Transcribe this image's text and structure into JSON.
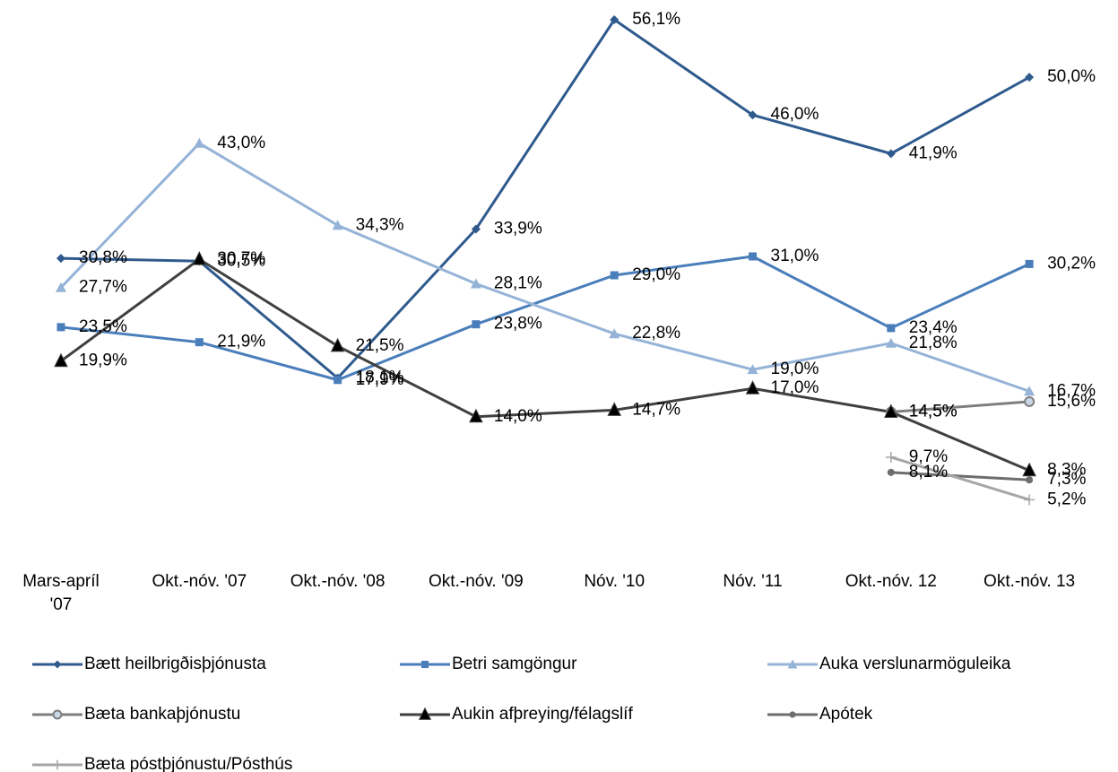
{
  "chart_data": {
    "type": "line",
    "categories": [
      "Mars-apríl '07",
      "Okt.-nóv. '07",
      "Okt.-nóv. '08",
      "Okt.-nóv. '09",
      "Nóv. '10",
      "Nóv. '11",
      "Okt.-nóv. 12",
      "Okt.-nóv. 13"
    ],
    "ylim": [
      0,
      60
    ],
    "series": [
      {
        "name": "Bætt heilbrigðisþjónusta",
        "color": "#2f5a8d",
        "marker": "diamond",
        "values": [
          30.8,
          30.5,
          18.1,
          33.9,
          56.1,
          46.0,
          41.9,
          50.0
        ],
        "value_labels": [
          "30,8%",
          "30,5%",
          "18,1%",
          "33,9%",
          "56,1%",
          "46,0%",
          "41,9%",
          "50,0%"
        ]
      },
      {
        "name": "Betri samgöngur",
        "color": "#4a7ebb",
        "marker": "square",
        "values": [
          23.5,
          21.9,
          17.9,
          23.8,
          29.0,
          31.0,
          23.4,
          30.2
        ],
        "value_labels": [
          "23,5%",
          "21,9%",
          "17,9%",
          "23,8%",
          "29,0%",
          "31,0%",
          "23,4%",
          "30,2%"
        ]
      },
      {
        "name": "Auka verslunarmöguleika",
        "color": "#95b3d7",
        "marker": "triangle",
        "values": [
          27.7,
          43.0,
          34.3,
          28.1,
          22.8,
          19.0,
          21.8,
          16.7
        ],
        "value_labels": [
          "27,7%",
          "43,0%",
          "34,3%",
          "28,1%",
          "22,8%",
          "19,0%",
          "21,8%",
          "16,7%"
        ]
      },
      {
        "name": "Bæta bankaþjónustu",
        "color": "#7f7f7f",
        "marker": "circle-open",
        "values": [
          null,
          null,
          null,
          null,
          null,
          null,
          14.5,
          15.6
        ],
        "value_labels": [
          null,
          null,
          null,
          null,
          null,
          null,
          "14,5%",
          "15,6%"
        ]
      },
      {
        "name": "Aukin afþreying/félagslíf",
        "color": "#404040",
        "marker": "triangle-dark",
        "values": [
          19.9,
          30.7,
          21.5,
          14.0,
          14.7,
          17.0,
          14.5,
          8.3
        ],
        "value_labels": [
          "19,9%",
          "30,7%",
          "21,5%",
          "14,0%",
          "14,7%",
          "17,0%",
          "14,5%",
          "8,3%"
        ]
      },
      {
        "name": "Apótek",
        "color": "#6d6d6d",
        "marker": "circle",
        "values": [
          null,
          null,
          null,
          null,
          null,
          null,
          8.1,
          7.3
        ],
        "value_labels": [
          null,
          null,
          null,
          null,
          null,
          null,
          "8,1%",
          "7,3%"
        ]
      },
      {
        "name": "Bæta póstþjónustu/Pósthús",
        "color": "#a6a6a6",
        "marker": "plus",
        "values": [
          null,
          null,
          null,
          null,
          null,
          null,
          9.7,
          5.2
        ],
        "value_labels": [
          null,
          null,
          null,
          null,
          null,
          null,
          "9,7%",
          "5,2%"
        ]
      }
    ]
  }
}
